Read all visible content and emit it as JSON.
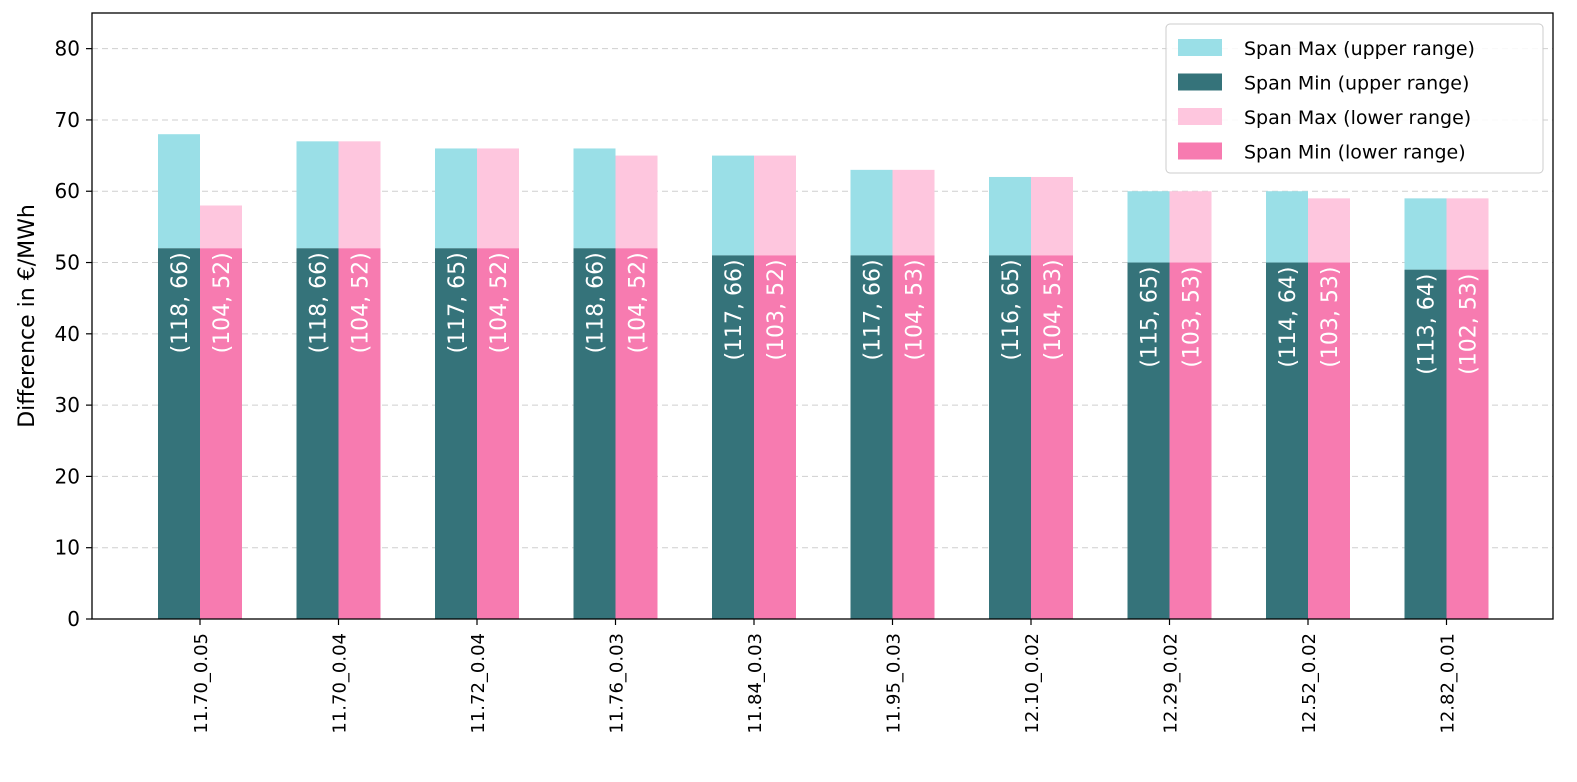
{
  "chart_data": {
    "type": "bar",
    "stacked_grouped": true,
    "title": "",
    "xlabel": "",
    "ylabel": "Difference in €/MWh",
    "ylim": [
      0,
      85
    ],
    "yticks": [
      0,
      10,
      20,
      30,
      40,
      50,
      60,
      70,
      80
    ],
    "grid": "horizontal-dashed",
    "legend_position": "top-right",
    "categories": [
      "11.70_0.05",
      "11.70_0.04",
      "11.72_0.04",
      "11.76_0.03",
      "11.84_0.03",
      "11.95_0.03",
      "12.10_0.02",
      "12.29_0.02",
      "12.52_0.02",
      "12.82_0.01"
    ],
    "series": [
      {
        "name": "Span Max (upper range)",
        "color": "#9adfe7",
        "group": "upper",
        "values": [
          68,
          67,
          66,
          66,
          65,
          63,
          62,
          60,
          60,
          59
        ]
      },
      {
        "name": "Span Min (upper range)",
        "color": "#35737a",
        "group": "upper",
        "values": [
          52,
          52,
          52,
          52,
          51,
          51,
          51,
          50,
          50,
          49
        ]
      },
      {
        "name": "Span Max (lower range)",
        "color": "#fec6de",
        "group": "lower",
        "values": [
          58,
          67,
          66,
          65,
          65,
          63,
          62,
          60,
          59,
          59
        ]
      },
      {
        "name": "Span Min (lower range)",
        "color": "#f77bb0",
        "group": "lower",
        "values": [
          52,
          52,
          52,
          52,
          51,
          51,
          51,
          50,
          50,
          49
        ]
      }
    ],
    "bar_labels": {
      "upper": [
        "(118, 66)",
        "(118, 66)",
        "(117, 65)",
        "(118, 66)",
        "(117, 66)",
        "(117, 66)",
        "(116, 65)",
        "(115, 65)",
        "(114, 64)",
        "(113, 64)"
      ],
      "lower": [
        "(104, 52)",
        "(104, 52)",
        "(104, 52)",
        "(104, 52)",
        "(103, 52)",
        "(104, 53)",
        "(104, 53)",
        "(103, 53)",
        "(103, 53)",
        "(102, 53)"
      ]
    }
  }
}
